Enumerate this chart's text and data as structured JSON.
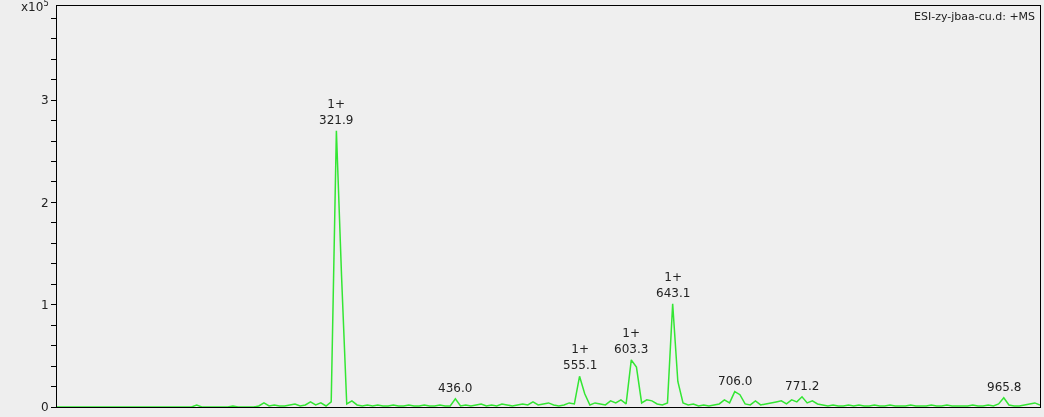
{
  "chart_data": {
    "type": "line",
    "ylabel": "x10$^{5}$",
    "color": "#33e633",
    "marker": "none",
    "categories": [
      null,
      null,
      null,
      null,
      null,
      null,
      null,
      null,
      null,
      null,
      null,
      null,
      null,
      null,
      null,
      null,
      null,
      null,
      null,
      null,
      null,
      null,
      null,
      null,
      null,
      null,
      null,
      null,
      null,
      null,
      null,
      null,
      null,
      null,
      null,
      null,
      null,
      null,
      null,
      null,
      null,
      null,
      null,
      null,
      null,
      null,
      null,
      null,
      null,
      null,
      null,
      null,
      null,
      null,
      null,
      null,
      null,
      null,
      null,
      null,
      null,
      null,
      null,
      null,
      null,
      null,
      null,
      null,
      null,
      null,
      null,
      null,
      null,
      null,
      null,
      null,
      null,
      null,
      null,
      null,
      null,
      null,
      null,
      null,
      null,
      null,
      null,
      null,
      null,
      null,
      null,
      null,
      null,
      null,
      null,
      null,
      null,
      null,
      null,
      null,
      null,
      null,
      null,
      null,
      null,
      null,
      null,
      null,
      null,
      null,
      null,
      null,
      null,
      null,
      null,
      null,
      null,
      null,
      null,
      null,
      null,
      null,
      null,
      null,
      null,
      null,
      null,
      null,
      null,
      null,
      null,
      null,
      null,
      null,
      null,
      null,
      null,
      null,
      null,
      null,
      null,
      null,
      null,
      null,
      null,
      null,
      null,
      null,
      null,
      null,
      null,
      null,
      null,
      null,
      null,
      null,
      null,
      null,
      null,
      null,
      null,
      null,
      null,
      null,
      null,
      null,
      null,
      null,
      null,
      null,
      null,
      null,
      null,
      null,
      null,
      null,
      null,
      null,
      null,
      null,
      null,
      null,
      null,
      null,
      null,
      null,
      null,
      null,
      null,
      null,
      null
    ],
    "values": [
      0,
      0,
      0,
      0,
      0,
      0,
      0,
      0,
      0,
      0,
      0,
      0,
      0,
      0,
      0,
      0,
      0,
      0,
      0,
      0,
      0,
      0,
      0,
      0,
      0,
      0,
      0,
      0.02,
      0,
      0,
      0,
      0,
      0,
      0,
      0.01,
      0,
      0,
      0,
      0,
      0.01,
      0.04,
      0.01,
      0.02,
      0.01,
      0.01,
      0.02,
      0.03,
      0.01,
      0.02,
      0.05,
      0.02,
      0.04,
      0.01,
      0.05,
      2.7,
      1.28,
      0.03,
      0.06,
      0.02,
      0.01,
      0.02,
      0.01,
      0.02,
      0.01,
      0.01,
      0.02,
      0.01,
      0.01,
      0.02,
      0.01,
      0.01,
      0.02,
      0.01,
      0.01,
      0.02,
      0.01,
      0.01,
      0.08,
      0.01,
      0.02,
      0.01,
      0.02,
      0.03,
      0.01,
      0.02,
      0.01,
      0.03,
      0.02,
      0.01,
      0.02,
      0.03,
      0.02,
      0.05,
      0.02,
      0.03,
      0.04,
      0.02,
      0.01,
      0.02,
      0.04,
      0.03,
      0.3,
      0.13,
      0.02,
      0.04,
      0.03,
      0.02,
      0.06,
      0.04,
      0.07,
      0.03,
      0.46,
      0.39,
      0.04,
      0.07,
      0.06,
      0.03,
      0.02,
      0.04,
      1.01,
      0.25,
      0.04,
      0.02,
      0.03,
      0.01,
      0.02,
      0.01,
      0.02,
      0.03,
      0.07,
      0.04,
      0.15,
      0.12,
      0.03,
      0.02,
      0.06,
      0.02,
      0.03,
      0.04,
      0.05,
      0.06,
      0.03,
      0.07,
      0.05,
      0.1,
      0.04,
      0.06,
      0.03,
      0.02,
      0.01,
      0.02,
      0.01,
      0.01,
      0.02,
      0.01,
      0.02,
      0.01,
      0.01,
      0.02,
      0.01,
      0.01,
      0.02,
      0.01,
      0.01,
      0.01,
      0.02,
      0.01,
      0.01,
      0.01,
      0.02,
      0.01,
      0.01,
      0.02,
      0.01,
      0.01,
      0.01,
      0.01,
      0.02,
      0.01,
      0.01,
      0.02,
      0.01,
      0.03,
      0.09,
      0.02,
      0.01,
      0.01,
      0.02,
      0.03,
      0.04,
      0.02
    ],
    "ylim": [
      0,
      3.92
    ],
    "yticks": [
      0,
      {
        "value": 0.2,
        "label": null
      },
      {
        "value": 0.4,
        "label": null
      },
      {
        "value": 0.6,
        "label": null
      },
      {
        "value": 0.8,
        "label": null
      },
      1,
      {
        "value": 1.2,
        "label": null
      },
      {
        "value": 1.4,
        "label": null
      },
      {
        "value": 1.6,
        "label": null
      },
      {
        "value": 1.8,
        "label": null
      },
      2,
      {
        "value": 2.2,
        "label": null
      },
      {
        "value": 2.4,
        "label": null
      },
      {
        "value": 2.6,
        "label": null
      },
      {
        "value": 2.8,
        "label": null
      },
      3,
      {
        "value": 3.2,
        "label": null
      },
      {
        "value": 3.4,
        "label": null
      },
      {
        "value": 3.6,
        "label": null
      },
      {
        "value": 3.8,
        "label": null
      }
    ],
    "tick_labels": "y",
    "grid": false,
    "annotations": [
      "ESI-zy-jbaa-cu.d: +MS",
      {
        "text": "1+\n321.9",
        "y": 2.7
      },
      {
        "text": "436.0",
        "y": 0.08
      },
      {
        "text": "1+\n555.1",
        "y": 0.3
      },
      {
        "text": "1+\n603.3",
        "y": 0.46
      },
      {
        "text": "1+\n643.1",
        "y": 1.01
      },
      {
        "text": "706.0",
        "y": 0.15
      },
      {
        "text": "771.2",
        "y": 0.1
      },
      {
        "text": "965.8",
        "y": 0.09
      }
    ]
  }
}
